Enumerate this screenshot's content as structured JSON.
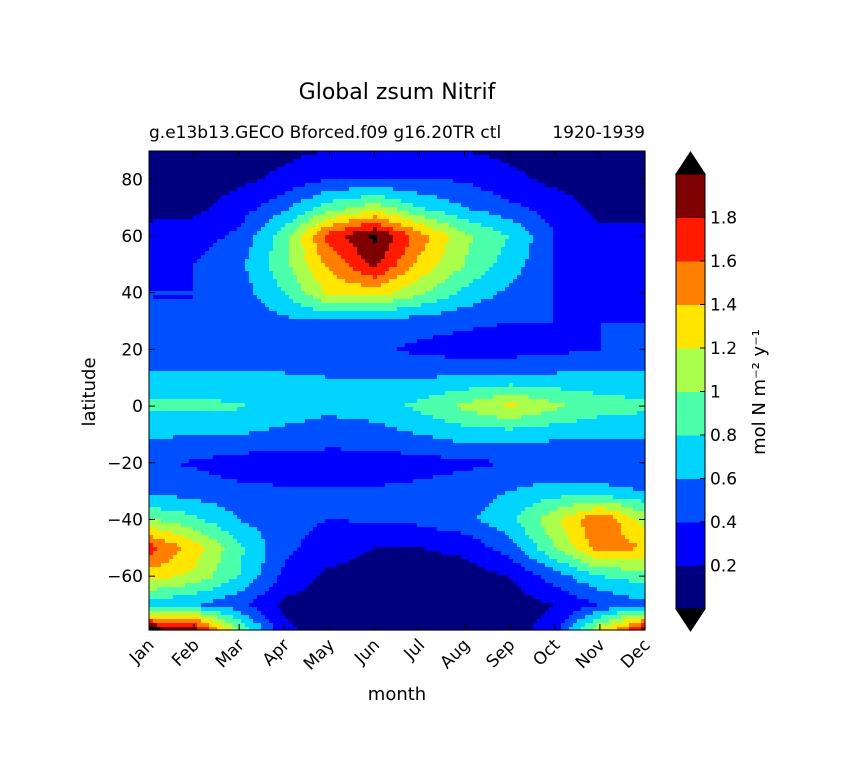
{
  "chart_data": {
    "type": "heatmap",
    "style": "filled-contour",
    "title": "Global zsum Nitrif",
    "subtitle_left": "g.e13b13.GECO Bforced.f09 g16.20TR ctl",
    "subtitle_right": "1920-1939",
    "xlabel": "month",
    "ylabel": "latitude",
    "x_categories": [
      "Jan",
      "Feb",
      "Mar",
      "Apr",
      "May",
      "Jun",
      "Jul",
      "Aug",
      "Sep",
      "Oct",
      "Nov",
      "Dec"
    ],
    "xlim": [
      0,
      11
    ],
    "ylim": [
      -79,
      90
    ],
    "y_ticks": [
      80,
      60,
      40,
      20,
      0,
      -20,
      -40,
      -60
    ],
    "y_tick_labels": [
      "80",
      "60",
      "40",
      "20",
      "0",
      "−20",
      "−40",
      "−60"
    ],
    "colorbar": {
      "label": "mol N m⁻² y⁻¹",
      "levels": [
        0,
        0.2,
        0.4,
        0.6,
        0.8,
        1.0,
        1.2,
        1.4,
        1.6,
        1.8,
        2.0
      ],
      "tick_values": [
        0.2,
        0.4,
        0.6,
        0.8,
        1.0,
        1.2,
        1.4,
        1.6,
        1.8
      ],
      "tick_labels": [
        "0.2",
        "0.4",
        "0.6",
        "0.8",
        "1",
        "1.2",
        "1.4",
        "1.6",
        "1.8"
      ],
      "colors": [
        "#00007f",
        "#0000ff",
        "#0050ff",
        "#00d4ff",
        "#4cffaa",
        "#aaff4c",
        "#ffe500",
        "#ff7f00",
        "#ff1a00",
        "#7f0000"
      ],
      "extend_under_color": "#000000",
      "extend_over_color": "#000000"
    },
    "latitudes": [
      90,
      80,
      70,
      60,
      50,
      40,
      30,
      20,
      10,
      0,
      -10,
      -20,
      -30,
      -40,
      -50,
      -60,
      -70,
      -79
    ],
    "z": [
      [
        0.1,
        0.1,
        0.1,
        0.15,
        0.2,
        0.2,
        0.2,
        0.2,
        0.15,
        0.1,
        0.1,
        0.1
      ],
      [
        0.1,
        0.1,
        0.15,
        0.25,
        0.4,
        0.4,
        0.4,
        0.38,
        0.25,
        0.15,
        0.1,
        0.1
      ],
      [
        0.15,
        0.15,
        0.3,
        0.55,
        0.9,
        1.1,
        0.8,
        0.6,
        0.45,
        0.3,
        0.15,
        0.15
      ],
      [
        0.25,
        0.3,
        0.45,
        0.9,
        1.7,
        2.05,
        1.5,
        1.05,
        0.8,
        0.4,
        0.25,
        0.25
      ],
      [
        0.35,
        0.4,
        0.55,
        0.95,
        1.45,
        1.85,
        1.35,
        1.0,
        0.7,
        0.4,
        0.3,
        0.3
      ],
      [
        0.4,
        0.4,
        0.5,
        0.8,
        1.25,
        1.3,
        1.05,
        0.75,
        0.55,
        0.4,
        0.35,
        0.35
      ],
      [
        0.4,
        0.4,
        0.45,
        0.55,
        0.6,
        0.55,
        0.5,
        0.45,
        0.4,
        0.4,
        0.4,
        0.4
      ],
      [
        0.45,
        0.45,
        0.45,
        0.5,
        0.5,
        0.45,
        0.35,
        0.3,
        0.3,
        0.35,
        0.4,
        0.45
      ],
      [
        0.65,
        0.65,
        0.65,
        0.62,
        0.6,
        0.6,
        0.6,
        0.62,
        0.65,
        0.65,
        0.65,
        0.65
      ],
      [
        0.85,
        0.85,
        0.82,
        0.7,
        0.65,
        0.7,
        0.85,
        1.05,
        1.25,
        1.05,
        0.9,
        0.85
      ],
      [
        0.62,
        0.62,
        0.6,
        0.55,
        0.5,
        0.52,
        0.6,
        0.7,
        0.7,
        0.65,
        0.62,
        0.62
      ],
      [
        0.42,
        0.38,
        0.3,
        0.3,
        0.3,
        0.3,
        0.32,
        0.36,
        0.4,
        0.42,
        0.45,
        0.45
      ],
      [
        0.55,
        0.5,
        0.45,
        0.42,
        0.42,
        0.42,
        0.45,
        0.5,
        0.6,
        0.7,
        0.65,
        0.6
      ],
      [
        1.0,
        0.85,
        0.6,
        0.45,
        0.4,
        0.42,
        0.45,
        0.55,
        0.75,
        1.15,
        1.6,
        1.1
      ],
      [
        1.7,
        1.3,
        0.85,
        0.45,
        0.3,
        0.2,
        0.2,
        0.25,
        0.5,
        1.0,
        1.5,
        1.4
      ],
      [
        1.3,
        1.15,
        0.8,
        0.35,
        0.15,
        0.1,
        0.1,
        0.1,
        0.2,
        0.5,
        0.8,
        0.9
      ],
      [
        0.7,
        0.6,
        0.45,
        0.15,
        0.1,
        0.05,
        0.05,
        0.05,
        0.1,
        0.2,
        0.4,
        0.55
      ],
      [
        2.1,
        1.95,
        1.0,
        0.25,
        0.1,
        0.05,
        0.05,
        0.05,
        0.1,
        0.3,
        1.2,
        1.9
      ]
    ]
  }
}
